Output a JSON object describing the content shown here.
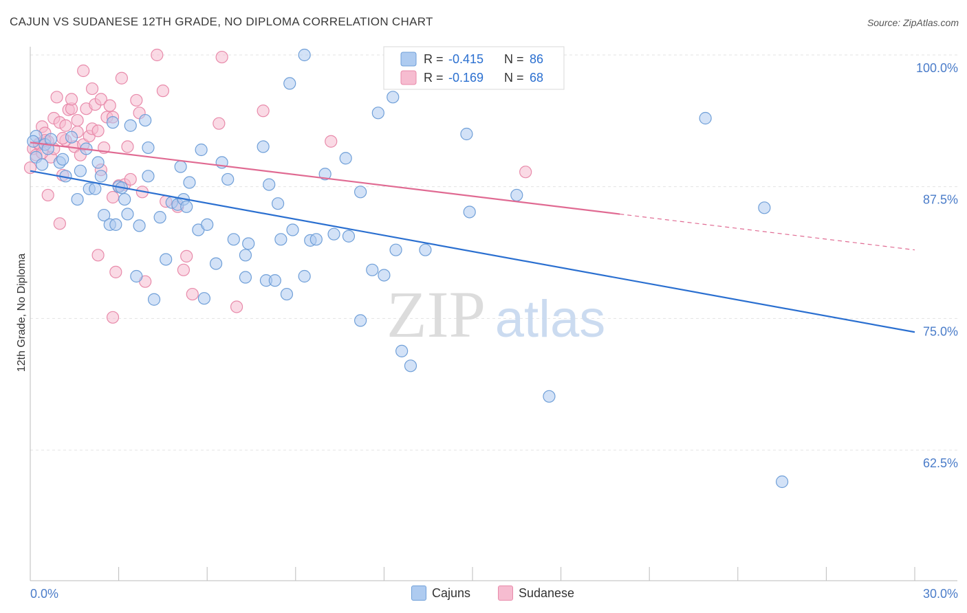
{
  "title": "CAJUN VS SUDANESE 12TH GRADE, NO DIPLOMA CORRELATION CHART",
  "source": "Source: ZipAtlas.com",
  "watermark": {
    "zip": "ZIP",
    "atlas": "atlas"
  },
  "colors": {
    "cajun_fill": "#aecbf0",
    "cajun_stroke": "#6f9fd8",
    "cajun_line": "#2a6fd0",
    "sudanese_fill": "#f6bcd0",
    "sudanese_stroke": "#e88aaa",
    "sudanese_line": "#e06a92",
    "tick_label": "#4a7cc9",
    "grid": "#e3e3e3"
  },
  "legend_top": {
    "rows": [
      {
        "r_label": "R =",
        "r_value": "-0.415",
        "n_label": "N =",
        "n_value": "86"
      },
      {
        "r_label": "R =",
        "r_value": "-0.169",
        "n_label": "N =",
        "n_value": "68"
      }
    ]
  },
  "legend_bottom": {
    "cajuns": "Cajuns",
    "sudanese": "Sudanese"
  },
  "chart_data": {
    "type": "scatter",
    "title": "CAJUN VS SUDANESE 12TH GRADE, NO DIPLOMA CORRELATION CHART",
    "ylabel": "12th Grade, No Diploma",
    "xlabel": "",
    "xlim": [
      0,
      30
    ],
    "ylim": [
      50,
      100
    ],
    "x_tick_labels": [
      "0.0%",
      "30.0%"
    ],
    "y_ticks": [
      {
        "value": 100,
        "label": "100.0%"
      },
      {
        "value": 87.5,
        "label": "87.5%"
      },
      {
        "value": 75,
        "label": "75.0%"
      },
      {
        "value": 62.5,
        "label": "62.5%"
      }
    ],
    "grid": true,
    "legend_position": "top-center",
    "series": [
      {
        "name": "Cajuns",
        "r": -0.415,
        "n": 86,
        "trend": {
          "x0": 0,
          "y0": 89.0,
          "x1": 30,
          "y1": 73.7,
          "solid_to": 30
        },
        "points": [
          [
            0.2,
            92.3
          ],
          [
            0.2,
            90.3
          ],
          [
            0.4,
            89.6
          ],
          [
            0.5,
            91.5
          ],
          [
            0.6,
            91.1
          ],
          [
            0.7,
            92.0
          ],
          [
            1.0,
            89.8
          ],
          [
            1.2,
            88.5
          ],
          [
            1.4,
            92.2
          ],
          [
            1.6,
            86.3
          ],
          [
            1.7,
            89.0
          ],
          [
            1.9,
            91.1
          ],
          [
            2.0,
            87.3
          ],
          [
            2.2,
            87.3
          ],
          [
            2.3,
            89.8
          ],
          [
            2.4,
            88.5
          ],
          [
            2.5,
            84.8
          ],
          [
            2.7,
            83.9
          ],
          [
            2.8,
            93.6
          ],
          [
            2.9,
            83.9
          ],
          [
            3.0,
            87.5
          ],
          [
            3.1,
            87.4
          ],
          [
            3.2,
            86.3
          ],
          [
            3.3,
            84.9
          ],
          [
            3.4,
            93.3
          ],
          [
            3.6,
            79.0
          ],
          [
            3.7,
            83.8
          ],
          [
            3.9,
            93.8
          ],
          [
            4.0,
            91.2
          ],
          [
            4.0,
            88.5
          ],
          [
            4.2,
            76.8
          ],
          [
            4.4,
            84.6
          ],
          [
            4.6,
            80.6
          ],
          [
            4.8,
            86.0
          ],
          [
            5.0,
            85.8
          ],
          [
            5.1,
            89.4
          ],
          [
            5.2,
            86.3
          ],
          [
            5.3,
            85.6
          ],
          [
            5.4,
            87.9
          ],
          [
            5.7,
            83.4
          ],
          [
            5.8,
            91.0
          ],
          [
            5.9,
            76.9
          ],
          [
            6.0,
            83.9
          ],
          [
            6.3,
            80.2
          ],
          [
            6.5,
            89.8
          ],
          [
            6.7,
            88.2
          ],
          [
            6.9,
            82.5
          ],
          [
            7.3,
            81.0
          ],
          [
            7.4,
            82.1
          ],
          [
            7.3,
            78.9
          ],
          [
            7.9,
            91.3
          ],
          [
            8.0,
            78.6
          ],
          [
            8.1,
            87.7
          ],
          [
            8.3,
            78.6
          ],
          [
            8.4,
            85.9
          ],
          [
            8.5,
            82.5
          ],
          [
            8.7,
            77.3
          ],
          [
            8.9,
            83.4
          ],
          [
            8.8,
            97.3
          ],
          [
            9.3,
            100.0
          ],
          [
            9.3,
            79.0
          ],
          [
            9.5,
            82.4
          ],
          [
            9.7,
            82.5
          ],
          [
            10.0,
            88.7
          ],
          [
            10.3,
            83.0
          ],
          [
            10.7,
            90.2
          ],
          [
            10.8,
            82.8
          ],
          [
            11.2,
            74.8
          ],
          [
            11.2,
            87.0
          ],
          [
            11.6,
            79.6
          ],
          [
            11.8,
            94.5
          ],
          [
            12.0,
            79.1
          ],
          [
            12.3,
            96.0
          ],
          [
            12.4,
            81.5
          ],
          [
            12.6,
            71.9
          ],
          [
            12.9,
            70.5
          ],
          [
            13.4,
            81.5
          ],
          [
            14.8,
            92.5
          ],
          [
            14.9,
            85.1
          ],
          [
            16.5,
            86.7
          ],
          [
            17.6,
            67.6
          ],
          [
            22.9,
            94.0
          ],
          [
            24.9,
            85.5
          ],
          [
            25.5,
            59.5
          ],
          [
            0.1,
            91.8
          ],
          [
            1.1,
            90.1
          ]
        ]
      },
      {
        "name": "Sudanese",
        "r": -0.169,
        "n": 68,
        "trend": {
          "x0": 0,
          "y0": 91.7,
          "x1": 30,
          "y1": 81.5,
          "solid_to": 20
        },
        "points": [
          [
            0.0,
            89.3
          ],
          [
            0.1,
            91.1
          ],
          [
            0.2,
            90.5
          ],
          [
            0.3,
            91.5
          ],
          [
            0.4,
            93.2
          ],
          [
            0.5,
            92.6
          ],
          [
            0.6,
            86.7
          ],
          [
            0.6,
            91.8
          ],
          [
            0.7,
            90.3
          ],
          [
            0.8,
            94.0
          ],
          [
            0.8,
            91.1
          ],
          [
            0.9,
            96.0
          ],
          [
            1.0,
            84.0
          ],
          [
            1.0,
            93.6
          ],
          [
            1.1,
            88.6
          ],
          [
            1.2,
            91.9
          ],
          [
            1.2,
            93.3
          ],
          [
            1.3,
            94.8
          ],
          [
            1.4,
            94.9
          ],
          [
            1.4,
            95.8
          ],
          [
            1.5,
            91.3
          ],
          [
            1.6,
            92.7
          ],
          [
            1.6,
            93.8
          ],
          [
            1.7,
            90.5
          ],
          [
            1.8,
            98.5
          ],
          [
            1.8,
            91.5
          ],
          [
            1.9,
            94.9
          ],
          [
            2.0,
            92.3
          ],
          [
            2.1,
            96.8
          ],
          [
            2.1,
            93.0
          ],
          [
            2.2,
            95.3
          ],
          [
            2.3,
            92.8
          ],
          [
            2.3,
            81.0
          ],
          [
            2.4,
            95.8
          ],
          [
            2.4,
            89.1
          ],
          [
            2.5,
            91.2
          ],
          [
            2.6,
            94.1
          ],
          [
            2.7,
            95.2
          ],
          [
            2.8,
            94.1
          ],
          [
            2.8,
            75.1
          ],
          [
            2.8,
            86.5
          ],
          [
            2.9,
            79.4
          ],
          [
            3.0,
            87.6
          ],
          [
            3.1,
            97.8
          ],
          [
            3.2,
            87.7
          ],
          [
            3.3,
            91.3
          ],
          [
            3.4,
            88.2
          ],
          [
            3.6,
            95.7
          ],
          [
            3.7,
            94.5
          ],
          [
            3.8,
            87.0
          ],
          [
            3.9,
            78.5
          ],
          [
            4.3,
            100.0
          ],
          [
            4.5,
            96.6
          ],
          [
            4.6,
            86.1
          ],
          [
            5.0,
            85.6
          ],
          [
            5.2,
            79.6
          ],
          [
            5.3,
            80.9
          ],
          [
            5.5,
            77.3
          ],
          [
            6.4,
            93.5
          ],
          [
            6.5,
            99.8
          ],
          [
            7.0,
            76.1
          ],
          [
            7.9,
            94.7
          ],
          [
            10.2,
            91.8
          ],
          [
            16.8,
            88.9
          ],
          [
            0.3,
            91.6
          ],
          [
            0.5,
            91.9
          ],
          [
            1.1,
            92.1
          ],
          [
            0.4,
            90.7
          ]
        ]
      }
    ]
  }
}
